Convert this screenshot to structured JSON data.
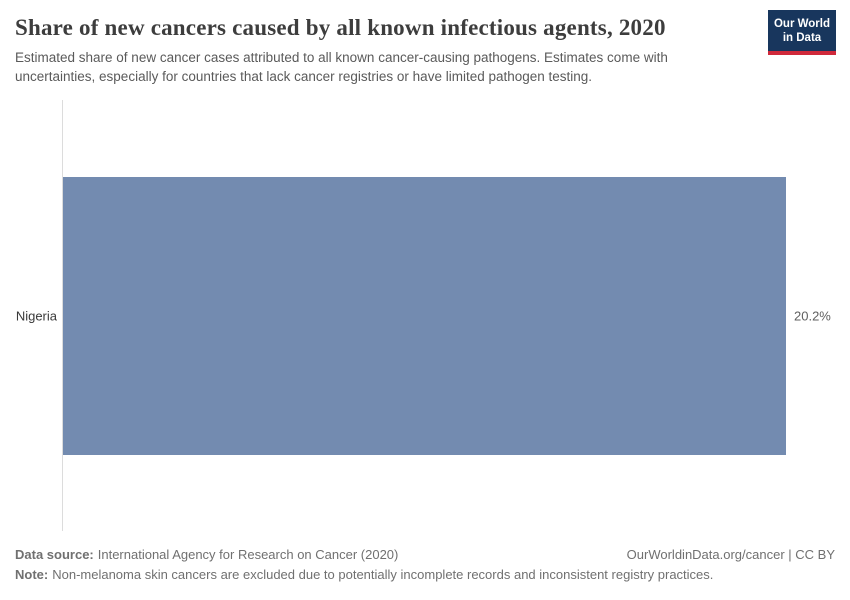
{
  "header": {
    "title": "Share of new cancers caused by all known infectious agents, 2020",
    "subtitle": "Estimated share of new cancer cases attributed to all known cancer-causing pathogens. Estimates come with uncertainties, especially for countries that lack cancer registries or have limited pathogen testing."
  },
  "logo": {
    "line1": "Our World",
    "line2": "in Data",
    "bg_color": "#18365d",
    "accent_color": "#d0293b"
  },
  "chart_data": {
    "type": "bar",
    "orientation": "horizontal",
    "title": "Share of new cancers caused by all known infectious agents, 2020",
    "categories": [
      "Nigeria"
    ],
    "values": [
      20.2
    ],
    "value_labels": [
      "20.2%"
    ],
    "xlabel": "",
    "ylabel": "",
    "xlim": [
      0,
      20.2
    ],
    "grid": false,
    "legend": "none",
    "bar_color": "#738bb0",
    "axis_line_color": "#dcdcdc"
  },
  "footer": {
    "data_source_label": "Data source:",
    "data_source": "International Agency for Research on Cancer (2020)",
    "link": "OurWorldinData.org/cancer | CC BY",
    "note_label": "Note:",
    "note": "Non-melanoma skin cancers are excluded due to potentially incomplete records and inconsistent registry practices."
  }
}
